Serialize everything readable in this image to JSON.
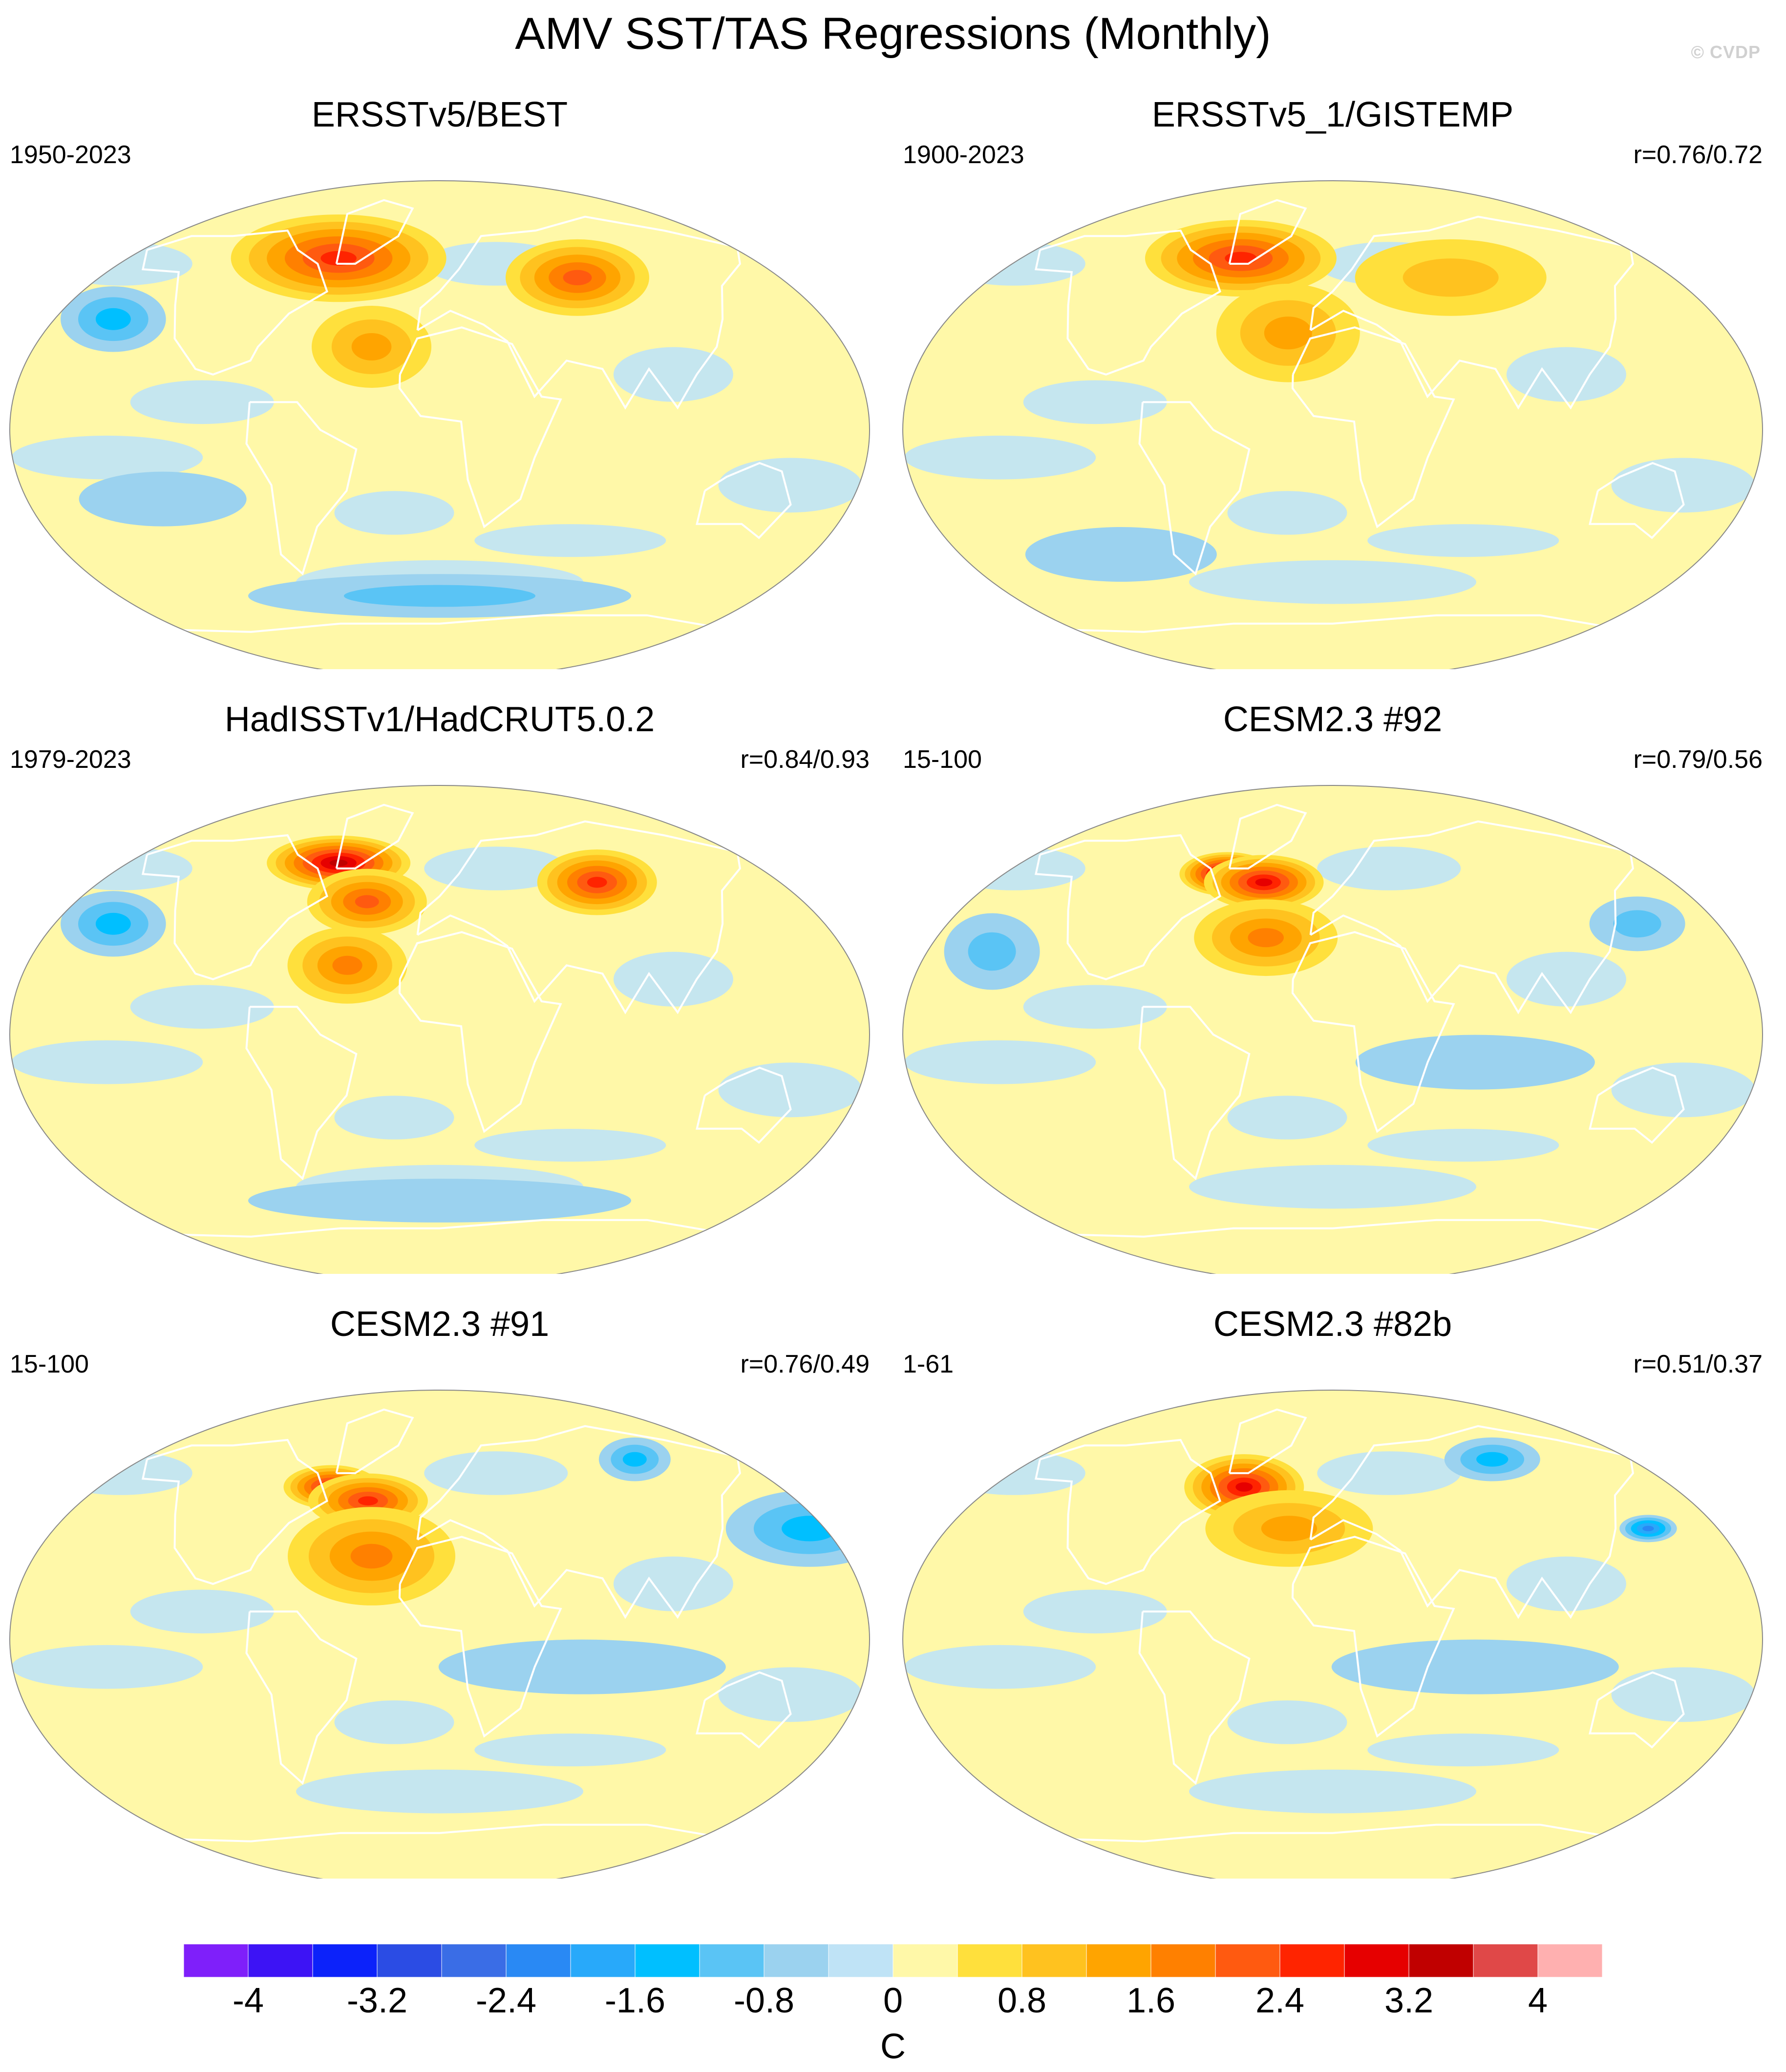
{
  "title": "AMV SST/TAS Regressions (Monthly)",
  "watermark": "© CVDP",
  "colors": {
    "land_outline": "#ffffff",
    "map_border": "#000000",
    "palette": [
      "#7f1ffa",
      "#3d13f5",
      "#0c22fa",
      "#2b4ce4",
      "#3a6de6",
      "#2989f4",
      "#28a9fa",
      "#00bfff",
      "#5ac4f5",
      "#9bd2ef",
      "#bfe3f6",
      "#fff8a8",
      "#ffe03c",
      "#ffc21f",
      "#ffa400",
      "#ff8000",
      "#ff5a10",
      "#ff2400",
      "#e60000",
      "#c00000",
      "#e04848",
      "#ffb0b0"
    ]
  },
  "panels": [
    {
      "title": "ERSSTv5/BEST",
      "period": "1950-2023",
      "corr": ""
    },
    {
      "title": "ERSSTv5_1/GISTEMP",
      "period": "1900-2023",
      "corr": "r=0.76/0.72"
    },
    {
      "title": "HadISSTv1/HadCRUT5.0.2",
      "period": "1979-2023",
      "corr": "r=0.84/0.93"
    },
    {
      "title": "CESM2.3 #92",
      "period": "15-100",
      "corr": "r=0.79/0.56"
    },
    {
      "title": "CESM2.3 #91",
      "period": "15-100",
      "corr": "r=0.76/0.49"
    },
    {
      "title": "CESM2.3 #82b",
      "period": "1-61",
      "corr": "r=0.51/0.37"
    }
  ],
  "chart_data": {
    "type": "heatmap",
    "projection": "Robinson-like global map",
    "colorbar": {
      "unit": "C",
      "min": -4.4,
      "max": 4.4,
      "step": 0.4,
      "tick_labels": [
        "-4",
        "-3.2",
        "-2.4",
        "-1.6",
        "-0.8",
        "0",
        "0.8",
        "1.6",
        "2.4",
        "3.2",
        "4"
      ],
      "tick_values": [
        -4,
        -3.2,
        -2.4,
        -1.6,
        -0.8,
        0,
        0.8,
        1.6,
        2.4,
        3.2,
        4
      ]
    },
    "anomaly_features": [
      [
        {
          "lon": -50,
          "lat": 60,
          "value": 3.4,
          "rx": 30,
          "ry": 10
        },
        {
          "lon": -55,
          "lat": 62,
          "value": 2.4,
          "rx": 45,
          "ry": 16
        },
        {
          "lon": -30,
          "lat": 30,
          "value": 1.4,
          "rx": 25,
          "ry": 15
        },
        {
          "lon": 70,
          "lat": 55,
          "value": 1.8,
          "rx": 30,
          "ry": 14
        },
        {
          "lon": -150,
          "lat": 40,
          "value": -1.2,
          "rx": 22,
          "ry": 12
        },
        {
          "lon": -120,
          "lat": -25,
          "value": -0.6,
          "rx": 35,
          "ry": 10
        },
        {
          "lon": 0,
          "lat": -60,
          "value": -0.8,
          "rx": 80,
          "ry": 8
        }
      ],
      [
        {
          "lon": -50,
          "lat": 62,
          "value": 2.2,
          "rx": 40,
          "ry": 14
        },
        {
          "lon": -20,
          "lat": 35,
          "value": 1.2,
          "rx": 30,
          "ry": 18
        },
        {
          "lon": 60,
          "lat": 55,
          "value": 0.9,
          "rx": 40,
          "ry": 14
        },
        {
          "lon": -100,
          "lat": -45,
          "value": -0.6,
          "rx": 40,
          "ry": 10
        }
      ],
      [
        {
          "lon": -55,
          "lat": 62,
          "value": 3.0,
          "rx": 30,
          "ry": 10
        },
        {
          "lon": -35,
          "lat": 48,
          "value": 2.0,
          "rx": 25,
          "ry": 12
        },
        {
          "lon": -40,
          "lat": 25,
          "value": 1.6,
          "rx": 25,
          "ry": 14
        },
        {
          "lon": 80,
          "lat": 55,
          "value": 2.2,
          "rx": 25,
          "ry": 12
        },
        {
          "lon": -150,
          "lat": 40,
          "value": -1.2,
          "rx": 22,
          "ry": 12
        },
        {
          "lon": 0,
          "lat": -60,
          "value": -0.6,
          "rx": 80,
          "ry": 8
        }
      ],
      [
        {
          "lon": -55,
          "lat": 58,
          "value": 3.4,
          "rx": 20,
          "ry": 8
        },
        {
          "lon": -35,
          "lat": 55,
          "value": 2.6,
          "rx": 25,
          "ry": 10
        },
        {
          "lon": -30,
          "lat": 35,
          "value": 1.6,
          "rx": 30,
          "ry": 14
        },
        {
          "lon": 140,
          "lat": 40,
          "value": -0.8,
          "rx": 20,
          "ry": 10
        },
        {
          "lon": -150,
          "lat": 30,
          "value": -0.8,
          "rx": 20,
          "ry": 14
        },
        {
          "lon": 60,
          "lat": -10,
          "value": -0.6,
          "rx": 50,
          "ry": 10
        }
      ],
      [
        {
          "lon": -55,
          "lat": 55,
          "value": 2.8,
          "rx": 20,
          "ry": 8
        },
        {
          "lon": -35,
          "lat": 50,
          "value": 2.2,
          "rx": 25,
          "ry": 10
        },
        {
          "lon": -30,
          "lat": 30,
          "value": 1.6,
          "rx": 35,
          "ry": 18
        },
        {
          "lon": 170,
          "lat": 40,
          "value": -1.0,
          "rx": 35,
          "ry": 14
        },
        {
          "lon": 110,
          "lat": 65,
          "value": -1.4,
          "rx": 15,
          "ry": 8
        },
        {
          "lon": 60,
          "lat": -10,
          "value": -0.6,
          "rx": 60,
          "ry": 10
        }
      ],
      [
        {
          "lon": -45,
          "lat": 55,
          "value": 4.2,
          "rx": 10,
          "ry": 6
        },
        {
          "lon": -45,
          "lat": 55,
          "value": 2.6,
          "rx": 25,
          "ry": 12
        },
        {
          "lon": -20,
          "lat": 40,
          "value": 1.2,
          "rx": 35,
          "ry": 14
        },
        {
          "lon": 145,
          "lat": 40,
          "value": -1.8,
          "rx": 12,
          "ry": 5
        },
        {
          "lon": 90,
          "lat": 65,
          "value": -1.0,
          "rx": 20,
          "ry": 8
        },
        {
          "lon": 60,
          "lat": -10,
          "value": -0.6,
          "rx": 60,
          "ry": 10
        }
      ]
    ]
  }
}
